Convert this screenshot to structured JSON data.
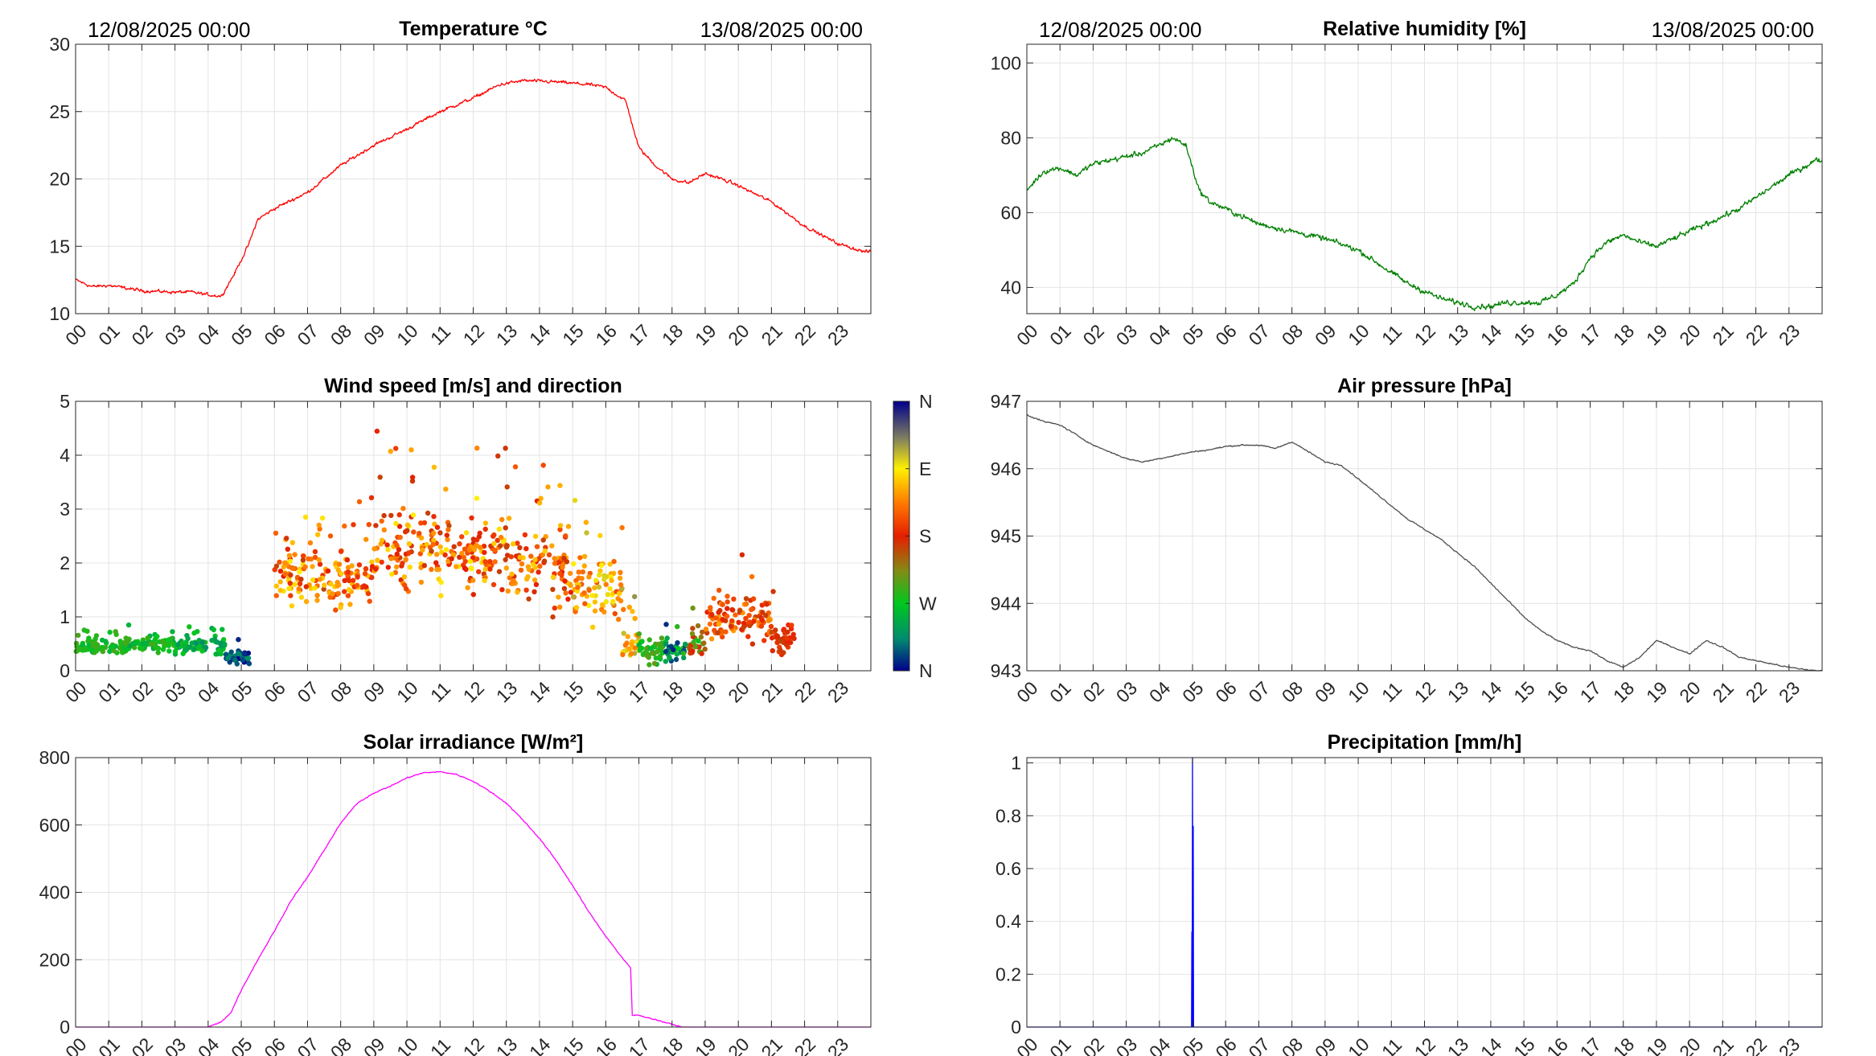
{
  "time_labels": [
    "00",
    "01",
    "02",
    "03",
    "04",
    "05",
    "06",
    "07",
    "08",
    "09",
    "10",
    "11",
    "12",
    "13",
    "14",
    "15",
    "16",
    "17",
    "18",
    "19",
    "20",
    "21",
    "22",
    "23"
  ],
  "date_start": "12/08/2025 00:00",
  "date_end": "13/08/2025 00:00",
  "chart_data": [
    {
      "id": "temperature",
      "type": "line",
      "title": "Temperature °C",
      "show_dates": true,
      "color": "#ff0000",
      "xlim": [
        0,
        24
      ],
      "ylim": [
        10,
        30
      ],
      "yticks": [
        10,
        15,
        20,
        25,
        30
      ],
      "ytick_labels": [
        "10",
        "15",
        "20",
        "25",
        "30"
      ],
      "noise": 0.15,
      "x": [
        0,
        0.5,
        1,
        2,
        3,
        3.5,
        4,
        4.4,
        4.8,
        5.2,
        5.5,
        6,
        7,
        8,
        9,
        10,
        11,
        12,
        12.8,
        13.5,
        14.5,
        15.5,
        16,
        16.6,
        17,
        17.5,
        18,
        18.5,
        19,
        19.5,
        20,
        21,
        22,
        23,
        23.8
      ],
      "y": [
        12.5,
        12,
        12.1,
        11.7,
        11.6,
        11.6,
        11.4,
        11.3,
        13,
        15,
        17,
        17.8,
        19,
        21,
        22.5,
        23.7,
        25,
        26,
        27,
        27.3,
        27.2,
        27,
        26.8,
        25.8,
        22.3,
        21,
        20,
        19.7,
        20.4,
        20,
        19.5,
        18.3,
        16.5,
        15.2,
        14.6
      ]
    },
    {
      "id": "humidity",
      "type": "line",
      "title": "Relative humidity [%]",
      "show_dates": true,
      "color": "#008000",
      "xlim": [
        0,
        24
      ],
      "ylim": [
        33,
        105
      ],
      "yticks": [
        40,
        60,
        80,
        100
      ],
      "ytick_labels": [
        "40",
        "60",
        "80",
        "100"
      ],
      "noise": 0.9,
      "x": [
        0,
        0.5,
        1,
        1.5,
        2,
        2.5,
        3,
        3.5,
        4,
        4.4,
        4.8,
        5.2,
        5.5,
        6,
        6.5,
        7,
        8,
        9,
        10,
        10.5,
        11,
        11.5,
        12,
        12.5,
        13,
        13.5,
        14,
        14.5,
        15,
        15.5,
        16,
        16.5,
        17,
        17.5,
        18,
        18.5,
        19,
        19.5,
        20,
        20.5,
        21,
        21.5,
        22,
        22.5,
        23,
        23.8
      ],
      "y": [
        66,
        71,
        72,
        70,
        73,
        74,
        75,
        76,
        78,
        80,
        78,
        66,
        63,
        61,
        59,
        57,
        55,
        53,
        50,
        47,
        44,
        41,
        39,
        37,
        36,
        35,
        35,
        36,
        36,
        36,
        38,
        41,
        48,
        52,
        54,
        52,
        51,
        53,
        55,
        57,
        59,
        61,
        64,
        67,
        70,
        74
      ]
    },
    {
      "id": "wind",
      "type": "scatter",
      "title": "Wind speed [m/s] and direction",
      "show_dates": false,
      "xlim": [
        0,
        24
      ],
      "ylim": [
        0,
        5
      ],
      "yticks": [
        0,
        1,
        2,
        3,
        4,
        5
      ],
      "ytick_labels": [
        "0",
        "1",
        "2",
        "3",
        "4",
        "5"
      ],
      "colorbar": {
        "labels": [
          "N",
          "W",
          "S",
          "E",
          "N"
        ]
      },
      "segments": [
        {
          "x0": 0,
          "x1": 1.5,
          "mean": 0.45,
          "spread": 0.12,
          "dir": [
            0.2,
            0.32
          ]
        },
        {
          "x0": 1.5,
          "x1": 3,
          "mean": 0.5,
          "spread": 0.12,
          "dir": [
            0.18,
            0.32
          ]
        },
        {
          "x0": 3,
          "x1": 4.5,
          "mean": 0.45,
          "spread": 0.14,
          "dir": [
            0.12,
            0.28
          ]
        },
        {
          "x0": 4.5,
          "x1": 5.3,
          "mean": 0.25,
          "spread": 0.12,
          "dir": [
            0.0,
            0.15
          ]
        },
        {
          "x0": 6,
          "x1": 7.5,
          "mean": 1.8,
          "spread": 0.45,
          "dir": [
            0.45,
            0.75
          ]
        },
        {
          "x0": 7.5,
          "x1": 9,
          "mean": 1.7,
          "spread": 0.5,
          "dir": [
            0.48,
            0.72
          ]
        },
        {
          "x0": 9,
          "x1": 11,
          "mean": 2.3,
          "spread": 0.6,
          "dir": [
            0.45,
            0.75
          ]
        },
        {
          "x0": 11,
          "x1": 13,
          "mean": 2.2,
          "spread": 0.6,
          "dir": [
            0.45,
            0.75
          ]
        },
        {
          "x0": 13,
          "x1": 15,
          "mean": 1.9,
          "spread": 0.6,
          "dir": [
            0.45,
            0.72
          ]
        },
        {
          "x0": 15,
          "x1": 16.5,
          "mean": 1.5,
          "spread": 0.55,
          "dir": [
            0.55,
            0.82
          ]
        },
        {
          "x0": 16.5,
          "x1": 17,
          "mean": 0.5,
          "spread": 0.3,
          "dir": [
            0.6,
            0.85
          ]
        },
        {
          "x0": 17,
          "x1": 17.8,
          "mean": 0.35,
          "spread": 0.2,
          "dir": [
            0.2,
            0.35
          ]
        },
        {
          "x0": 17.8,
          "x1": 18.5,
          "mean": 0.4,
          "spread": 0.2,
          "dir": [
            0.0,
            0.3
          ]
        },
        {
          "x0": 18.5,
          "x1": 19,
          "mean": 0.5,
          "spread": 0.25,
          "dir": [
            0.25,
            0.5
          ]
        },
        {
          "x0": 19,
          "x1": 20,
          "mean": 1.0,
          "spread": 0.4,
          "dir": [
            0.45,
            0.68
          ]
        },
        {
          "x0": 20,
          "x1": 21,
          "mean": 1.0,
          "spread": 0.4,
          "dir": [
            0.45,
            0.65
          ]
        },
        {
          "x0": 21,
          "x1": 21.7,
          "mean": 0.6,
          "spread": 0.3,
          "dir": [
            0.45,
            0.55
          ]
        }
      ]
    },
    {
      "id": "pressure",
      "type": "line",
      "title": "Air pressure [hPa]",
      "show_dates": false,
      "color": "#505050",
      "xlim": [
        0,
        24
      ],
      "ylim": [
        943,
        947
      ],
      "yticks": [
        943,
        944,
        945,
        946,
        947
      ],
      "ytick_labels": [
        "943",
        "944",
        "945",
        "946",
        "947"
      ],
      "noise": 0.012,
      "x": [
        0,
        0.5,
        1,
        1.5,
        2,
        2.5,
        3,
        3.5,
        4,
        4.5,
        5,
        5.5,
        6,
        6.5,
        7,
        7.5,
        8,
        8.5,
        9,
        9.5,
        10,
        10.5,
        11,
        11.5,
        12,
        12.5,
        13,
        13.5,
        14,
        14.5,
        15,
        15.5,
        16,
        16.5,
        17,
        17.5,
        18,
        18.5,
        19,
        19.5,
        20,
        20.5,
        21,
        21.5,
        22,
        22.5,
        23,
        23.8
      ],
      "y": [
        946.8,
        946.7,
        946.65,
        946.5,
        946.35,
        946.25,
        946.15,
        946.1,
        946.15,
        946.2,
        946.25,
        946.28,
        946.33,
        946.35,
        946.35,
        946.3,
        946.4,
        946.25,
        946.1,
        946.05,
        945.85,
        945.65,
        945.45,
        945.25,
        945.1,
        944.95,
        944.75,
        944.55,
        944.3,
        944.05,
        943.8,
        943.6,
        943.45,
        943.35,
        943.3,
        943.15,
        943.05,
        943.2,
        943.45,
        943.35,
        943.25,
        943.45,
        943.35,
        943.2,
        943.15,
        943.1,
        943.05,
        943.0
      ]
    },
    {
      "id": "solar",
      "type": "line",
      "title": "Solar irradiance [W/m²]",
      "show_dates": false,
      "color": "#ff00ff",
      "xlim": [
        0,
        24
      ],
      "ylim": [
        0,
        800
      ],
      "yticks": [
        0,
        200,
        400,
        600,
        800
      ],
      "ytick_labels": [
        "0",
        "200",
        "400",
        "600",
        "800"
      ],
      "noise": 2,
      "x": [
        0,
        4,
        4.4,
        4.7,
        5,
        5.5,
        6,
        6.5,
        7,
        7.5,
        8,
        8.5,
        9,
        9.5,
        10,
        10.5,
        11,
        11.5,
        12,
        12.5,
        13,
        13.5,
        14,
        14.5,
        15,
        15.5,
        16,
        16.5,
        16.75,
        16.8,
        17,
        17.5,
        18,
        18.3,
        19,
        24
      ],
      "y": [
        0,
        0,
        15,
        45,
        110,
        200,
        285,
        375,
        445,
        525,
        605,
        665,
        695,
        715,
        740,
        755,
        758,
        750,
        730,
        700,
        665,
        615,
        560,
        495,
        420,
        340,
        270,
        205,
        175,
        35,
        35,
        22,
        8,
        0,
        0,
        0
      ]
    },
    {
      "id": "precip",
      "type": "line",
      "title": "Precipitation [mm/h]",
      "show_dates": false,
      "color": "#0000ff",
      "xlim": [
        0,
        24
      ],
      "ylim": [
        0,
        1.02
      ],
      "yticks": [
        0,
        0.2,
        0.4,
        0.6,
        0.8,
        1
      ],
      "ytick_labels": [
        "0",
        "0.2",
        "0.4",
        "0.6",
        "0.8",
        "1"
      ],
      "noise": 0,
      "x": [
        0,
        4.97,
        4.98,
        4.99,
        5.0,
        5.01,
        5.02,
        5.03,
        24
      ],
      "y": [
        0,
        0,
        0.36,
        0,
        1.02,
        0,
        0.76,
        0,
        0
      ]
    }
  ]
}
